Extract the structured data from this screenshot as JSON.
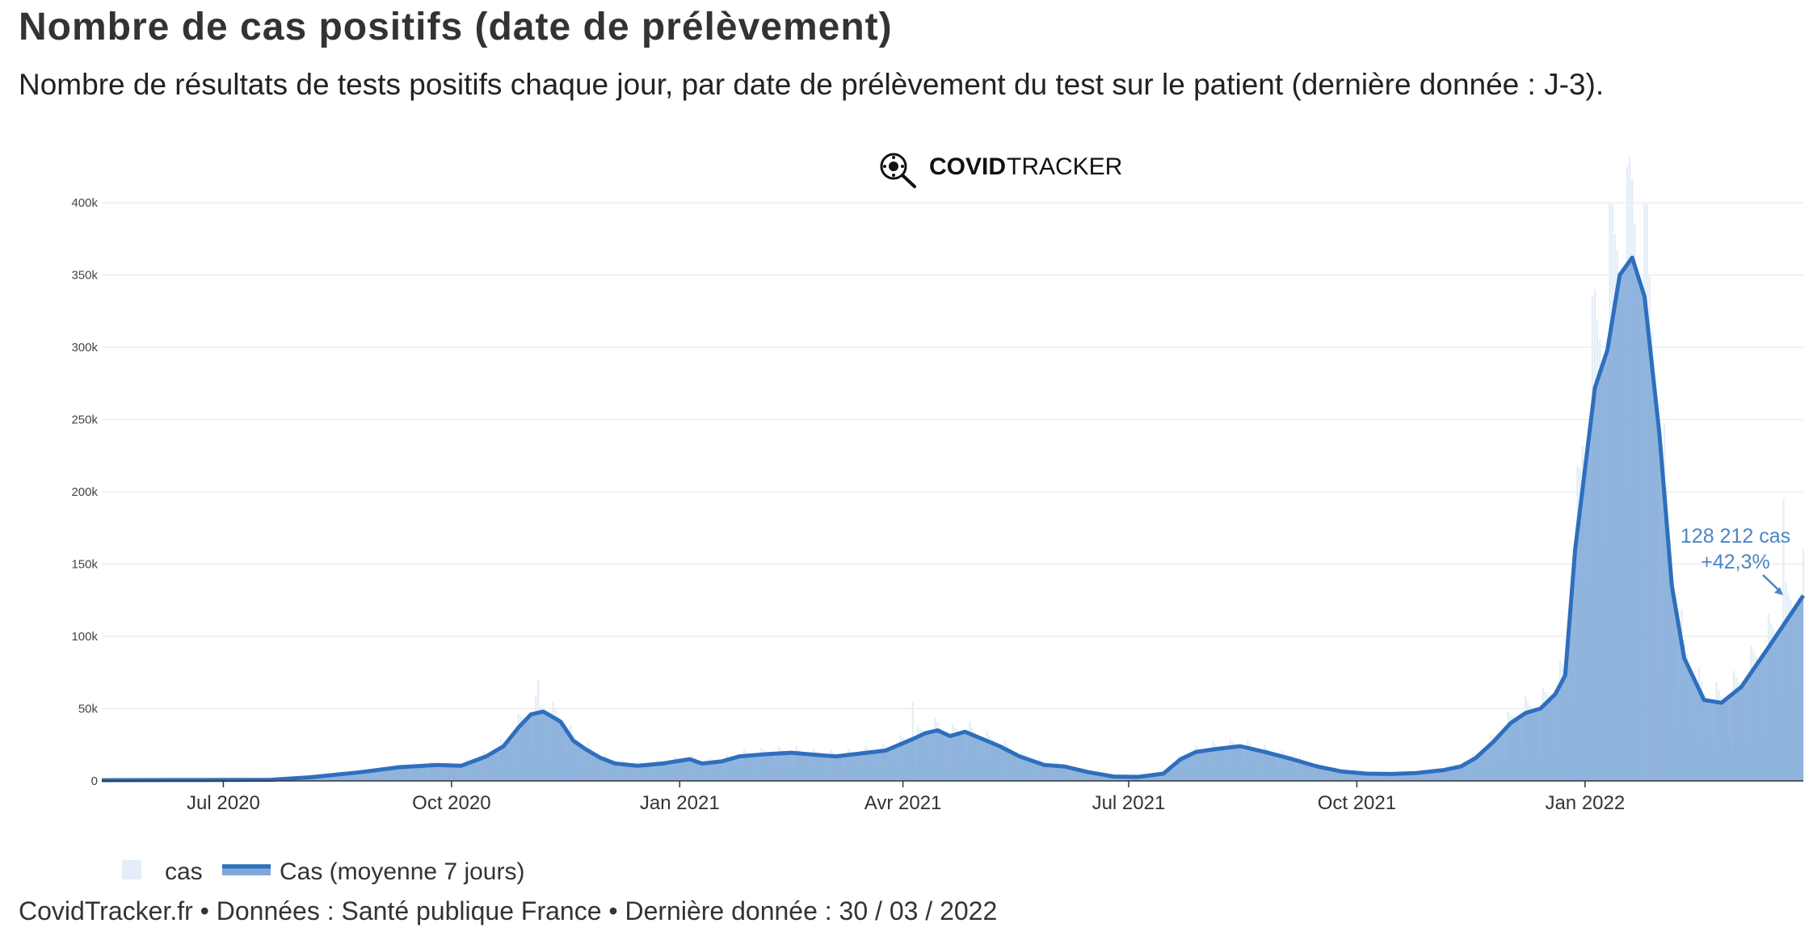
{
  "title": "Nombre de cas positifs (date de prélèvement)",
  "subtitle": "Nombre de résultats de tests positifs chaque jour, par date de prélèvement du test sur le patient (dernière donnée : J-3).",
  "footer": "CovidTracker.fr • Données : Santé publique France • Dernière donnée : 30 / 03 / 2022",
  "brand": {
    "bold": "COVID",
    "light": "TRACKER",
    "icon": "virus-magnifier-icon"
  },
  "colors": {
    "daily_bar": "#e4eef8",
    "avg_line": "#2e6fbd",
    "avg_fill": "#7fa8d8",
    "annotation": "#4a86c5"
  },
  "chart_data": {
    "type": "area",
    "x_axis": {
      "type": "date",
      "range": [
        "2020-05-13",
        "2022-03-30"
      ],
      "ticks": [
        {
          "date": "2020-07-01",
          "label": "Jul 2020"
        },
        {
          "date": "2020-10-01",
          "label": "Oct 2020"
        },
        {
          "date": "2021-01-01",
          "label": "Jan 2021"
        },
        {
          "date": "2021-04-01",
          "label": "Avr 2021"
        },
        {
          "date": "2021-07-01",
          "label": "Jul 2021"
        },
        {
          "date": "2021-10-01",
          "label": "Oct 2021"
        },
        {
          "date": "2022-01-01",
          "label": "Jan 2022"
        }
      ]
    },
    "y_axis": {
      "range": [
        0,
        400000
      ],
      "ticks": [
        {
          "value": 0,
          "label": "0"
        },
        {
          "value": 50000,
          "label": "50k"
        },
        {
          "value": 100000,
          "label": "100k"
        },
        {
          "value": 150000,
          "label": "150k"
        },
        {
          "value": 200000,
          "label": "200k"
        },
        {
          "value": 250000,
          "label": "250k"
        },
        {
          "value": 300000,
          "label": "300k"
        },
        {
          "value": 350000,
          "label": "350k"
        },
        {
          "value": 400000,
          "label": "400k"
        }
      ]
    },
    "grid": true,
    "legend_position": "bottom-left",
    "series": [
      {
        "name": "Cas (moyenne 7 jours)",
        "style": "line+area",
        "points": [
          [
            "2020-05-13",
            500
          ],
          [
            "2020-06-15",
            600
          ],
          [
            "2020-07-20",
            800
          ],
          [
            "2020-08-05",
            2500
          ],
          [
            "2020-08-25",
            6000
          ],
          [
            "2020-09-10",
            9500
          ],
          [
            "2020-09-25",
            11000
          ],
          [
            "2020-10-05",
            10500
          ],
          [
            "2020-10-15",
            17000
          ],
          [
            "2020-10-22",
            24000
          ],
          [
            "2020-10-28",
            37000
          ],
          [
            "2020-11-02",
            46000
          ],
          [
            "2020-11-07",
            48000
          ],
          [
            "2020-11-14",
            41000
          ],
          [
            "2020-11-19",
            28000
          ],
          [
            "2020-11-24",
            22000
          ],
          [
            "2020-11-30",
            16000
          ],
          [
            "2020-12-06",
            12000
          ],
          [
            "2020-12-15",
            10500
          ],
          [
            "2020-12-25",
            12000
          ],
          [
            "2021-01-05",
            15000
          ],
          [
            "2021-01-10",
            12000
          ],
          [
            "2021-01-18",
            13500
          ],
          [
            "2021-01-25",
            17000
          ],
          [
            "2021-02-05",
            18500
          ],
          [
            "2021-02-15",
            19500
          ],
          [
            "2021-02-25",
            18000
          ],
          [
            "2021-03-05",
            17000
          ],
          [
            "2021-03-15",
            19000
          ],
          [
            "2021-03-25",
            21000
          ],
          [
            "2021-04-05",
            29000
          ],
          [
            "2021-04-10",
            33000
          ],
          [
            "2021-04-15",
            35000
          ],
          [
            "2021-04-20",
            31000
          ],
          [
            "2021-04-26",
            34000
          ],
          [
            "2021-05-03",
            29000
          ],
          [
            "2021-05-10",
            24000
          ],
          [
            "2021-05-18",
            17000
          ],
          [
            "2021-05-28",
            11000
          ],
          [
            "2021-06-05",
            10000
          ],
          [
            "2021-06-15",
            6000
          ],
          [
            "2021-06-25",
            3000
          ],
          [
            "2021-07-05",
            2800
          ],
          [
            "2021-07-15",
            5000
          ],
          [
            "2021-07-22",
            15000
          ],
          [
            "2021-07-28",
            20000
          ],
          [
            "2021-08-05",
            22000
          ],
          [
            "2021-08-15",
            24000
          ],
          [
            "2021-08-25",
            20000
          ],
          [
            "2021-09-05",
            15000
          ],
          [
            "2021-09-15",
            10000
          ],
          [
            "2021-09-25",
            6500
          ],
          [
            "2021-10-05",
            5000
          ],
          [
            "2021-10-15",
            4800
          ],
          [
            "2021-10-25",
            5500
          ],
          [
            "2021-11-05",
            7500
          ],
          [
            "2021-11-12",
            10000
          ],
          [
            "2021-11-18",
            16000
          ],
          [
            "2021-11-25",
            27000
          ],
          [
            "2021-12-02",
            40000
          ],
          [
            "2021-12-08",
            47000
          ],
          [
            "2021-12-14",
            50000
          ],
          [
            "2021-12-20",
            60000
          ],
          [
            "2021-12-24",
            73000
          ],
          [
            "2021-12-28",
            160000
          ],
          [
            "2022-01-02",
            230000
          ],
          [
            "2022-01-05",
            272000
          ],
          [
            "2022-01-10",
            298000
          ],
          [
            "2022-01-15",
            350000
          ],
          [
            "2022-01-20",
            362000
          ],
          [
            "2022-01-25",
            335000
          ],
          [
            "2022-01-31",
            240000
          ],
          [
            "2022-02-05",
            135000
          ],
          [
            "2022-02-10",
            85000
          ],
          [
            "2022-02-18",
            56000
          ],
          [
            "2022-02-25",
            54000
          ],
          [
            "2022-03-05",
            65000
          ],
          [
            "2022-03-15",
            90000
          ],
          [
            "2022-03-30",
            128212
          ]
        ]
      },
      {
        "name": "cas",
        "style": "daily-bars",
        "note_peaks": [
          [
            "2020-11-05",
            70000
          ],
          [
            "2021-04-05",
            55000
          ],
          [
            "2021-12-31",
            232000
          ],
          [
            "2022-01-04",
            335000
          ],
          [
            "2022-01-11",
            400000
          ],
          [
            "2022-01-18",
            425000
          ],
          [
            "2022-01-25",
            400000
          ],
          [
            "2022-03-22",
            195000
          ]
        ]
      }
    ],
    "annotation": {
      "date": "2022-03-30",
      "value": 128212,
      "line1": "128 212 cas",
      "line2": "+42,3%"
    }
  },
  "legend": [
    {
      "label": "cas",
      "swatch": "daily-bar-swatch"
    },
    {
      "label": "Cas (moyenne 7 jours)",
      "swatch": "avg-line-swatch"
    }
  ]
}
